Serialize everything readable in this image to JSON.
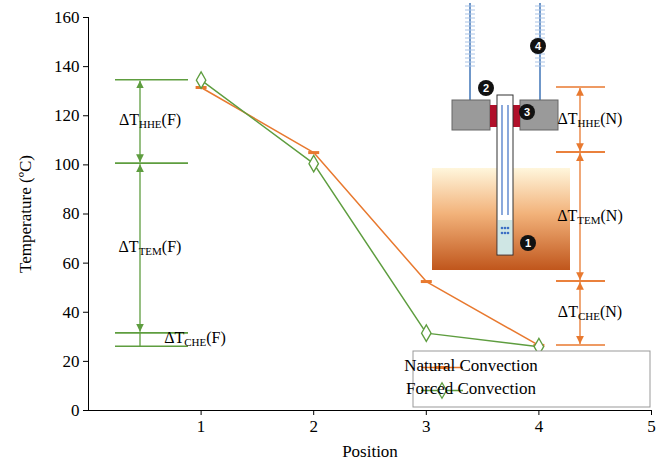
{
  "chart_data": {
    "type": "line",
    "x_label": "Position",
    "y_label": "Temperature (ºC)",
    "x": [
      1,
      2,
      3,
      4
    ],
    "xlim": [
      0,
      5
    ],
    "xticks": [
      1,
      2,
      3,
      4,
      5
    ],
    "ylim": [
      0,
      160
    ],
    "yticks": [
      0,
      20,
      40,
      60,
      80,
      100,
      120,
      140,
      160
    ],
    "grid": false,
    "legend": "bottom-right",
    "series": [
      {
        "name": "Natural Convection",
        "color": "#e8792f",
        "marker": "dash",
        "values": [
          131.5,
          105,
          52.5,
          26.5
        ]
      },
      {
        "name": "Forced Convection",
        "color": "#5e9d3f",
        "marker": "diamond",
        "values": [
          134.5,
          100.5,
          31.5,
          26
        ]
      }
    ],
    "annotations": [
      {
        "text": "ΔT",
        "subscript": "HHE",
        "suffix": "(F)",
        "series": "Forced Convection",
        "from_position": 1,
        "to_position": 2
      },
      {
        "text": "ΔT",
        "subscript": "TEM",
        "suffix": "(F)",
        "series": "Forced Convection",
        "from_position": 2,
        "to_position": 3
      },
      {
        "text": "ΔT",
        "subscript": "CHE",
        "suffix": "(F)",
        "series": "Forced Convection",
        "from_position": 3,
        "to_position": 4
      },
      {
        "text": "ΔT",
        "subscript": "HHE",
        "suffix": "(N)",
        "series": "Natural Convection",
        "from_position": 1,
        "to_position": 2
      },
      {
        "text": "ΔT",
        "subscript": "TEM",
        "suffix": "(N)",
        "series": "Natural Convection",
        "from_position": 2,
        "to_position": 3
      },
      {
        "text": "ΔT",
        "subscript": "CHE",
        "suffix": "(N)",
        "series": "Natural Convection",
        "from_position": 3,
        "to_position": 4
      }
    ],
    "inset_labels": [
      "1",
      "2",
      "3",
      "4"
    ]
  }
}
